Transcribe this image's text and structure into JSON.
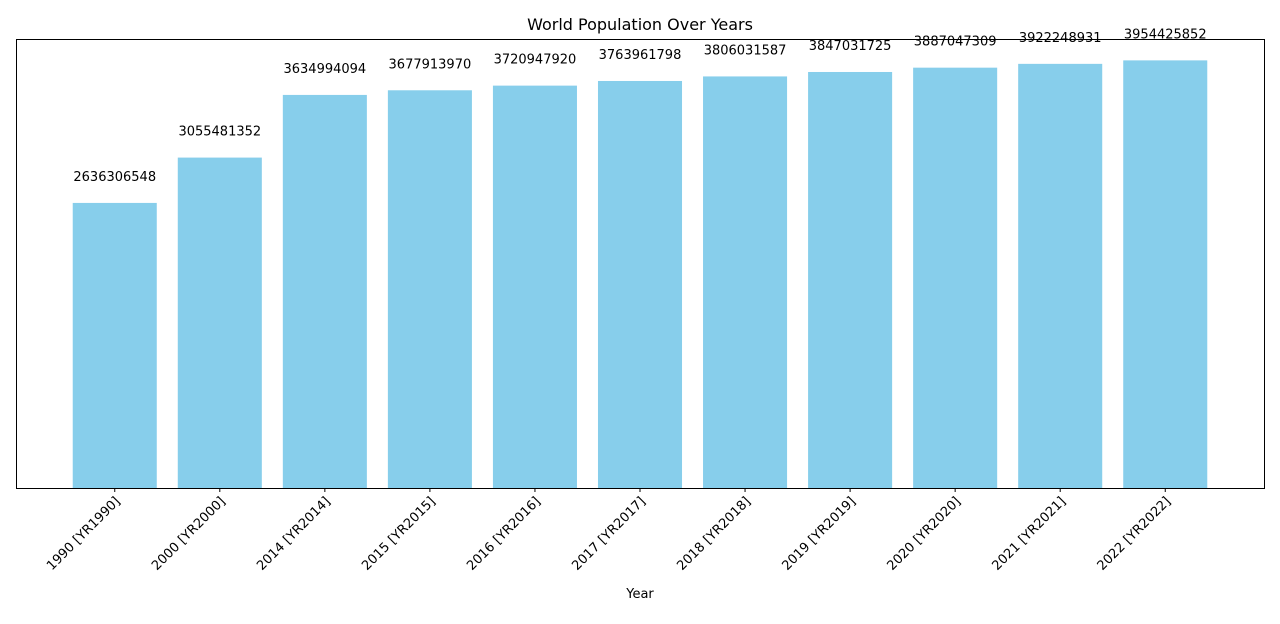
{
  "chart_data": {
    "type": "bar",
    "title": "World Population Over Years",
    "xlabel": "Year",
    "ylabel": "",
    "categories": [
      "1990 [YR1990]",
      "2000 [YR2000]",
      "2014 [YR2014]",
      "2015 [YR2015]",
      "2016 [YR2016]",
      "2017 [YR2017]",
      "2018 [YR2018]",
      "2019 [YR2019]",
      "2020 [YR2020]",
      "2021 [YR2021]",
      "2022 [YR2022]"
    ],
    "values": [
      2636306548,
      3055481352,
      3634994094,
      3677913970,
      3720947920,
      3763961798,
      3806031587,
      3847031725,
      3887047309,
      3922248931,
      3954425852
    ],
    "data_labels": [
      "2636306548",
      "3055481352",
      "3634994094",
      "3677913970",
      "3720947920",
      "3763961798",
      "3806031587",
      "3847031725",
      "3887047309",
      "3922248931",
      "3954425852"
    ],
    "ylim": [
      0,
      4152147145
    ],
    "y_axis_visible": false,
    "grid": false,
    "legend": "none",
    "colors": {
      "bar": "#87ceeb",
      "axis": "#000000",
      "text": "#000000",
      "background": "#ffffff"
    }
  }
}
